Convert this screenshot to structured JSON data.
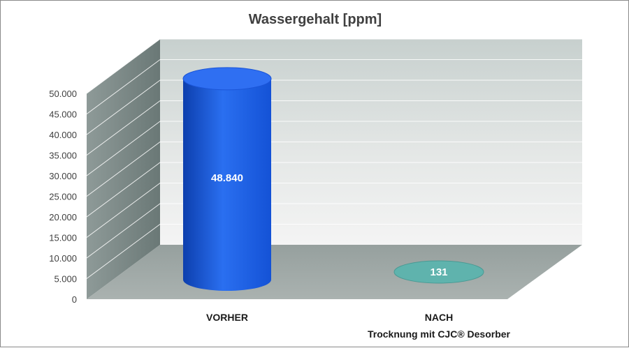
{
  "chart_data": {
    "type": "bar",
    "title": "Wassergehalt [ppm]",
    "xlabel": "",
    "ylabel": "",
    "ylim": [
      0,
      50000
    ],
    "yticks": [
      0,
      5000,
      10000,
      15000,
      20000,
      25000,
      30000,
      35000,
      40000,
      45000,
      50000
    ],
    "ytick_labels": [
      "0",
      "5.000",
      "10.000",
      "15.000",
      "20.000",
      "25.000",
      "30.000",
      "35.000",
      "40.000",
      "45.000",
      "50.000"
    ],
    "grid": true,
    "legend": "none",
    "categories": [
      {
        "label": "VORHER",
        "sublabel": ""
      },
      {
        "label": "NACH",
        "sublabel": "Trocknung mit CJC® Desorber"
      }
    ],
    "values": [
      48840,
      131
    ],
    "data_labels": [
      "48.840",
      "131"
    ],
    "colors": [
      "#1a5fe0",
      "#5fb3ad"
    ]
  }
}
